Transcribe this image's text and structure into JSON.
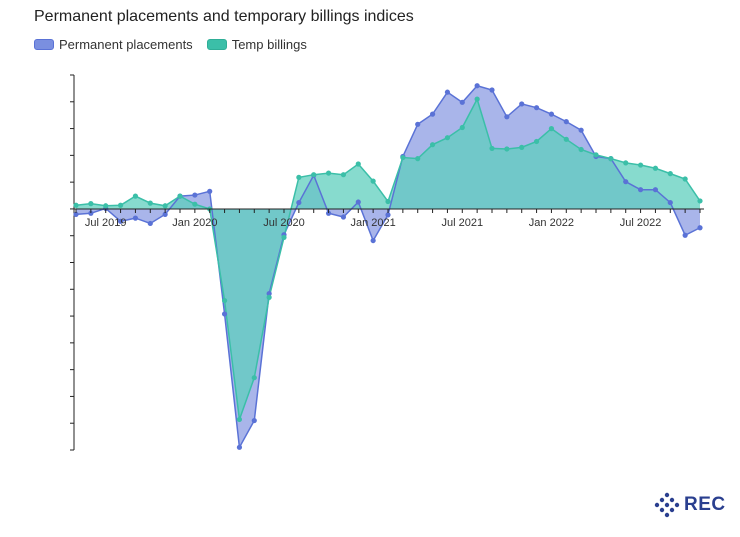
{
  "header": {
    "title": "Permanent placements and temporary billings indices"
  },
  "colors": {
    "permanent": "#5a72d6",
    "permanent_fill": "#9aa8e6",
    "temp": "#3bbfa8",
    "temp_fill": "#5fcfbd"
  },
  "brand": {
    "logo_text": "REC",
    "logo_icon": "diamond-dots-icon"
  },
  "chart_data": {
    "type": "area",
    "title": "Permanent placements and temporary billings indices",
    "xlabel": "",
    "ylabel": "",
    "x": [
      "2019-05",
      "2019-06",
      "2019-07",
      "2019-08",
      "2019-09",
      "2019-10",
      "2019-11",
      "2019-12",
      "2020-01",
      "2020-02",
      "2020-03",
      "2020-04",
      "2020-05",
      "2020-06",
      "2020-07",
      "2020-08",
      "2020-09",
      "2020-10",
      "2020-11",
      "2020-12",
      "2021-01",
      "2021-02",
      "2021-03",
      "2021-04",
      "2021-05",
      "2021-06",
      "2021-07",
      "2021-08",
      "2021-09",
      "2021-10",
      "2021-11",
      "2021-12",
      "2022-01",
      "2022-02",
      "2022-03",
      "2022-04",
      "2022-05",
      "2022-06",
      "2022-07",
      "2022-08",
      "2022-09",
      "2022-10",
      "2022-11"
    ],
    "x_ticks": [
      "Jul 2019",
      "Jan 2020",
      "Jul 2020",
      "Jan 2021",
      "Jul 2021",
      "Jan 2022",
      "Jul 2022"
    ],
    "x_tick_positions": [
      "2019-07",
      "2020-01",
      "2020-07",
      "2021-01",
      "2021-07",
      "2022-01",
      "2022-07"
    ],
    "ylim": [
      -45,
      25
    ],
    "series": [
      {
        "name": "Permanent placements",
        "values": [
          -1.0,
          -0.8,
          0.1,
          -2.3,
          -1.7,
          -2.7,
          -1.0,
          2.4,
          2.6,
          3.3,
          -19.6,
          -44.5,
          -39.5,
          -15.8,
          -4.8,
          1.2,
          6.3,
          -0.8,
          -1.5,
          1.3,
          -5.9,
          -1.1,
          9.8,
          15.8,
          17.7,
          21.8,
          19.9,
          23.0,
          22.2,
          17.2,
          19.6,
          18.9,
          17.7,
          16.3,
          14.7,
          9.8,
          9.4,
          5.1,
          3.6,
          3.6,
          1.2,
          -4.9,
          -3.5
        ]
      },
      {
        "name": "Temp billings",
        "values": [
          0.7,
          1.0,
          0.6,
          0.7,
          2.4,
          1.1,
          0.6,
          2.4,
          0.9,
          0.0,
          -17.1,
          -39.3,
          -31.5,
          -16.5,
          -5.3,
          5.9,
          6.4,
          6.7,
          6.4,
          8.4,
          5.2,
          1.4,
          9.6,
          9.4,
          12.0,
          13.3,
          15.2,
          20.5,
          11.3,
          11.2,
          11.5,
          12.6,
          15.0,
          13.0,
          11.1,
          10.1,
          9.4,
          8.6,
          8.2,
          7.6,
          6.6,
          5.6,
          1.5
        ]
      }
    ],
    "grid": false,
    "legend_position": "top-left"
  }
}
